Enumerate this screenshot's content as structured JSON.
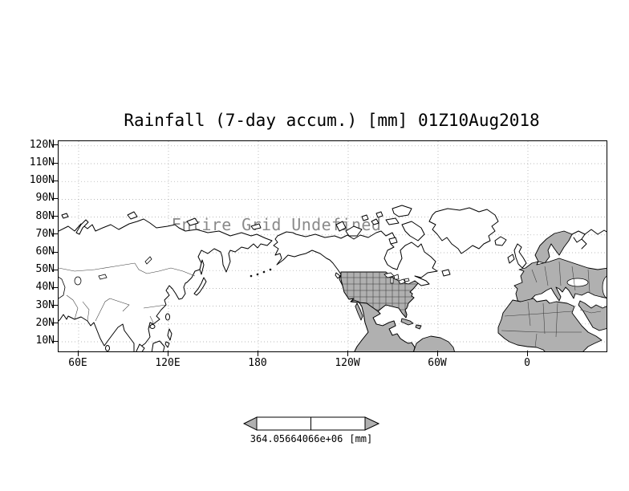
{
  "title": "Rainfall (7-day accum.) [mm] 01Z10Aug2018",
  "map": {
    "message": "Entire Grid Undefined"
  },
  "axes": {
    "lat_labels": [
      "120N",
      "110N",
      "100N",
      "90N",
      "80N",
      "70N",
      "60N",
      "50N",
      "40N",
      "30N",
      "20N",
      "10N"
    ],
    "lon_labels": [
      "60E",
      "120E",
      "180",
      "120W",
      "60W",
      "0"
    ]
  },
  "colorbar": {
    "caption": "364.05664066e+06",
    "unit": "[mm]"
  },
  "colors": {
    "background": "#ffffff",
    "land_fill": "#b0b0b0",
    "water_fill": "#ffffff",
    "coastline": "#000000",
    "grid_dots": "#999999",
    "message_text": "#8a8a8a"
  }
}
